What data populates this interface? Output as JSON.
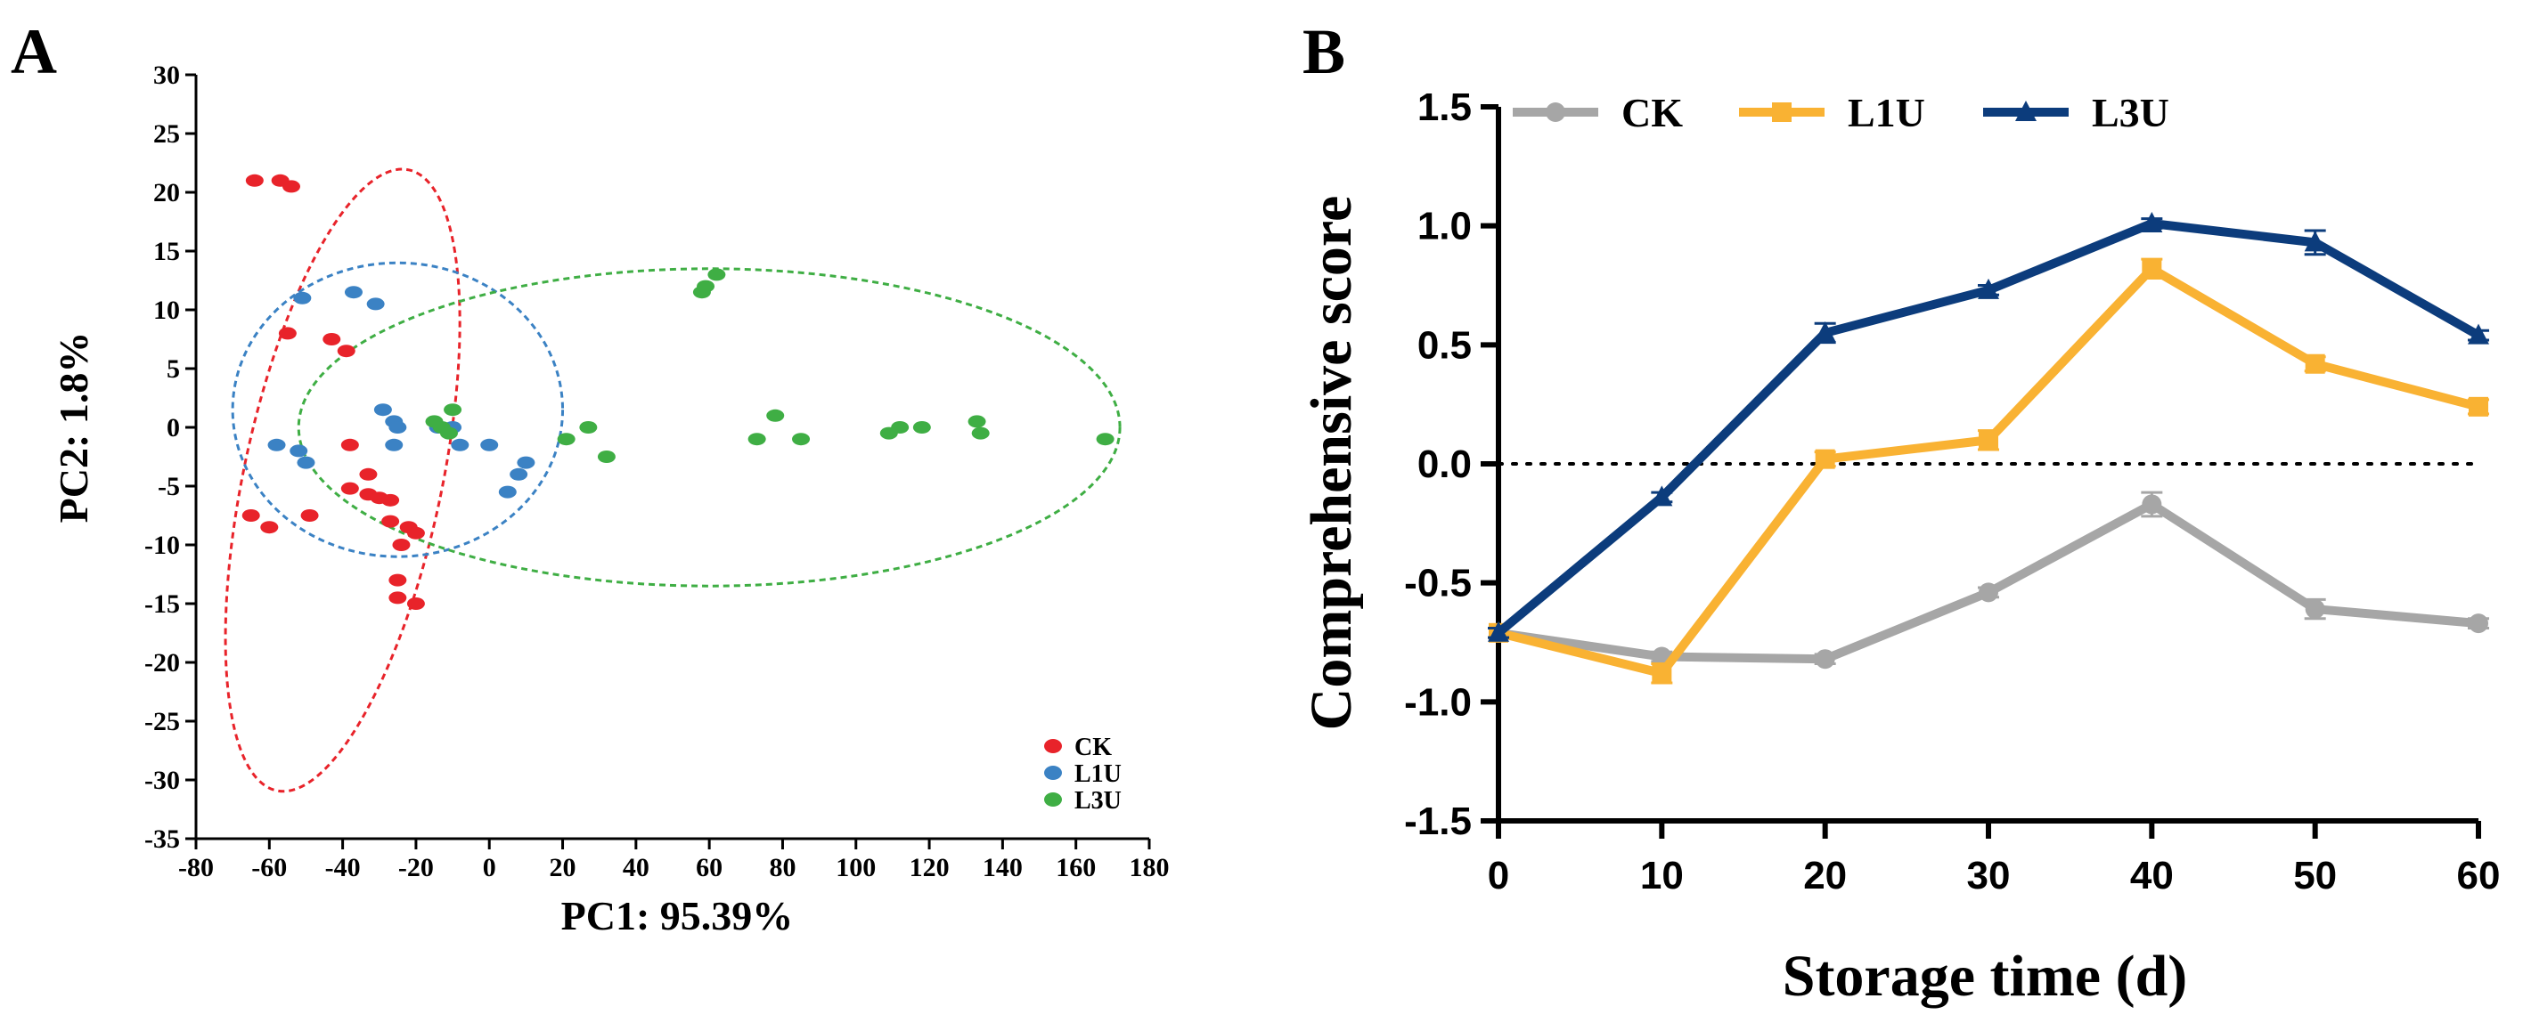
{
  "chart_data": [
    {
      "panel": "A",
      "type": "scatter",
      "title": "",
      "xlabel": "PC1: 95.39%",
      "ylabel": "PC2: 1.8%",
      "xlim": [
        -80,
        180
      ],
      "ylim": [
        -35,
        30
      ],
      "xticks": [
        "-80",
        "-60",
        "-40",
        "-20",
        "0",
        "20",
        "40",
        "60",
        "80",
        "100",
        "120",
        "140",
        "160",
        "180"
      ],
      "yticks": [
        "30",
        "25",
        "20",
        "15",
        "10",
        "5",
        "0",
        "-5",
        "-10",
        "-15",
        "-20",
        "-25",
        "-30",
        "-35"
      ],
      "legend_position": "bottom-right",
      "series": [
        {
          "name": "CK",
          "color": "#e8232a",
          "points": [
            [
              -64,
              21
            ],
            [
              -57,
              21
            ],
            [
              -54,
              20.5
            ],
            [
              -55,
              8
            ],
            [
              -43,
              7.5
            ],
            [
              -39,
              6.5
            ],
            [
              -38,
              -1.5
            ],
            [
              -38,
              -5.2
            ],
            [
              -33,
              -4
            ],
            [
              -33,
              -5.7
            ],
            [
              -30,
              -6
            ],
            [
              -27,
              -6.2
            ],
            [
              -27,
              -8
            ],
            [
              -22,
              -8.5
            ],
            [
              -20,
              -9
            ],
            [
              -24,
              -10
            ],
            [
              -25,
              -13
            ],
            [
              -25,
              -14.5
            ],
            [
              -20,
              -15
            ],
            [
              -60,
              -8.5
            ],
            [
              -65,
              -7.5
            ],
            [
              -49,
              -7.5
            ]
          ]
        },
        {
          "name": "L1U",
          "color": "#3b82c4",
          "points": [
            [
              -51,
              11
            ],
            [
              -37,
              11.5
            ],
            [
              -31,
              10.5
            ],
            [
              -58,
              -1.5
            ],
            [
              -52,
              -2
            ],
            [
              -50,
              -3
            ],
            [
              -29,
              1.5
            ],
            [
              -26,
              0.5
            ],
            [
              -25,
              0
            ],
            [
              -26,
              -1.5
            ],
            [
              -14,
              0
            ],
            [
              -10,
              0
            ],
            [
              -8,
              -1.5
            ],
            [
              0,
              -1.5
            ],
            [
              10,
              -3
            ],
            [
              8,
              -4
            ],
            [
              5,
              -5.5
            ]
          ]
        },
        {
          "name": "L3U",
          "color": "#3fae44",
          "points": [
            [
              58,
              11.5
            ],
            [
              59,
              12
            ],
            [
              62,
              13
            ],
            [
              -15,
              0.5
            ],
            [
              -13,
              0
            ],
            [
              -10,
              1.5
            ],
            [
              -11,
              -0.5
            ],
            [
              21,
              -1
            ],
            [
              27,
              0
            ],
            [
              32,
              -2.5
            ],
            [
              73,
              -1
            ],
            [
              78,
              1
            ],
            [
              85,
              -1
            ],
            [
              109,
              -0.5
            ],
            [
              112,
              0
            ],
            [
              118,
              0
            ],
            [
              133,
              0.5
            ],
            [
              134,
              -0.5
            ],
            [
              168,
              -1
            ]
          ]
        }
      ],
      "ellipses": [
        {
          "series": "CK",
          "center": [
            -40,
            -4.5
          ],
          "rx": 27,
          "ry": 27,
          "rotation_deg": 12
        },
        {
          "series": "L1U",
          "center": [
            -25,
            1.5
          ],
          "rx": 45,
          "ry": 12.5,
          "rotation_deg": 0
        },
        {
          "series": "L3U",
          "center": [
            60,
            0
          ],
          "rx": 112,
          "ry": 13.5,
          "rotation_deg": 0
        }
      ]
    },
    {
      "panel": "B",
      "type": "line",
      "title": "",
      "xlabel": "Storage time (d)",
      "ylabel": "Comprehensive score",
      "x": [
        0,
        10,
        20,
        30,
        40,
        50,
        60
      ],
      "xticks": [
        "0",
        "10",
        "20",
        "30",
        "40",
        "50",
        "60"
      ],
      "yticks": [
        "1.5",
        "1.0",
        "0.5",
        "0.0",
        "-0.5",
        "-1.0",
        "-1.5"
      ],
      "xlim": [
        0,
        60
      ],
      "ylim": [
        -1.5,
        1.5
      ],
      "reference_line_y": 0,
      "legend_position": "top",
      "series": [
        {
          "name": "CK",
          "color": "#a6a6a6",
          "marker": "circle",
          "values": [
            -0.71,
            -0.81,
            -0.82,
            -0.54,
            -0.17,
            -0.61,
            -0.67
          ],
          "errors": [
            0.02,
            0.02,
            0.02,
            0.02,
            0.05,
            0.04,
            0.02
          ]
        },
        {
          "name": "L1U",
          "color": "#f9b233",
          "marker": "square",
          "values": [
            -0.71,
            -0.88,
            0.02,
            0.1,
            0.82,
            0.42,
            0.24
          ],
          "errors": [
            0.02,
            0.04,
            0.03,
            0.04,
            0.04,
            0.03,
            0.03
          ]
        },
        {
          "name": "L3U",
          "color": "#0c3c7c",
          "marker": "triangle",
          "values": [
            -0.71,
            -0.14,
            0.55,
            0.73,
            1.01,
            0.93,
            0.54
          ],
          "errors": [
            0.02,
            0.02,
            0.04,
            0.02,
            0.02,
            0.05,
            0.02
          ]
        }
      ]
    }
  ],
  "panel_labels": [
    "A",
    "B"
  ]
}
